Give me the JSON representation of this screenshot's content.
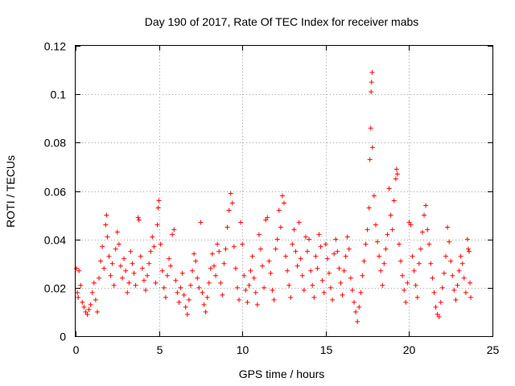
{
  "chart_data": {
    "type": "scatter",
    "title": "Day 190 of 2017, Rate Of TEC Index for receiver mabs",
    "xlabel": "GPS time / hours",
    "ylabel": "ROTI / TECUs",
    "xlim": [
      0,
      25
    ],
    "ylim": [
      0,
      0.12
    ],
    "x_ticks": [
      0,
      5,
      10,
      15,
      20,
      25
    ],
    "x_tick_labels": [
      "0",
      "5",
      "10",
      "15",
      "20",
      "25"
    ],
    "y_ticks": [
      0,
      0.02,
      0.04,
      0.06,
      0.08,
      0.1,
      0.12
    ],
    "y_tick_labels": [
      "0",
      "0.02",
      "0.04",
      "0.06",
      "0.08",
      "0.1",
      "0.12"
    ],
    "grid": true,
    "marker": "+",
    "series_color": "#ff0000",
    "series": [
      {
        "points": [
          [
            0.05,
            0.028
          ],
          [
            0.1,
            0.018
          ],
          [
            0.15,
            0.016
          ],
          [
            0.2,
            0.027
          ],
          [
            0.3,
            0.021
          ],
          [
            0.4,
            0.014
          ],
          [
            0.5,
            0.012
          ],
          [
            0.6,
            0.01
          ],
          [
            0.7,
            0.009
          ],
          [
            0.8,
            0.011
          ],
          [
            0.9,
            0.013
          ],
          [
            1.0,
            0.018
          ],
          [
            1.1,
            0.022
          ],
          [
            1.2,
            0.015
          ],
          [
            1.3,
            0.01
          ],
          [
            1.4,
            0.024
          ],
          [
            1.5,
            0.031
          ],
          [
            1.6,
            0.037
          ],
          [
            1.7,
            0.028
          ],
          [
            1.8,
            0.046
          ],
          [
            1.85,
            0.05
          ],
          [
            1.9,
            0.041
          ],
          [
            2.0,
            0.033
          ],
          [
            2.1,
            0.025
          ],
          [
            2.2,
            0.03
          ],
          [
            2.3,
            0.021
          ],
          [
            2.4,
            0.036
          ],
          [
            2.5,
            0.043
          ],
          [
            2.6,
            0.038
          ],
          [
            2.7,
            0.029
          ],
          [
            2.8,
            0.024
          ],
          [
            2.9,
            0.032
          ],
          [
            3.0,
            0.027
          ],
          [
            3.1,
            0.018
          ],
          [
            3.2,
            0.022
          ],
          [
            3.3,
            0.035
          ],
          [
            3.4,
            0.03
          ],
          [
            3.5,
            0.026
          ],
          [
            3.6,
            0.021
          ],
          [
            3.75,
            0.049
          ],
          [
            3.8,
            0.048
          ],
          [
            3.9,
            0.033
          ],
          [
            4.0,
            0.028
          ],
          [
            4.1,
            0.023
          ],
          [
            4.2,
            0.019
          ],
          [
            4.3,
            0.025
          ],
          [
            4.4,
            0.03
          ],
          [
            4.5,
            0.035
          ],
          [
            4.6,
            0.041
          ],
          [
            4.7,
            0.037
          ],
          [
            4.8,
            0.022
          ],
          [
            4.9,
            0.046
          ],
          [
            4.95,
            0.053
          ],
          [
            5.0,
            0.056
          ],
          [
            5.1,
            0.038
          ],
          [
            5.2,
            0.027
          ],
          [
            5.3,
            0.02
          ],
          [
            5.4,
            0.016
          ],
          [
            5.5,
            0.025
          ],
          [
            5.6,
            0.032
          ],
          [
            5.7,
            0.029
          ],
          [
            5.8,
            0.042
          ],
          [
            5.9,
            0.044
          ],
          [
            6.0,
            0.023
          ],
          [
            6.1,
            0.018
          ],
          [
            6.2,
            0.014
          ],
          [
            6.3,
            0.02
          ],
          [
            6.4,
            0.026
          ],
          [
            6.5,
            0.017
          ],
          [
            6.6,
            0.012
          ],
          [
            6.7,
            0.009
          ],
          [
            6.8,
            0.015
          ],
          [
            6.9,
            0.021
          ],
          [
            7.0,
            0.027
          ],
          [
            7.1,
            0.034
          ],
          [
            7.2,
            0.031
          ],
          [
            7.3,
            0.024
          ],
          [
            7.4,
            0.02
          ],
          [
            7.5,
            0.047
          ],
          [
            7.6,
            0.018
          ],
          [
            7.7,
            0.013
          ],
          [
            7.8,
            0.01
          ],
          [
            7.9,
            0.016
          ],
          [
            8.0,
            0.022
          ],
          [
            8.1,
            0.028
          ],
          [
            8.2,
            0.034
          ],
          [
            8.3,
            0.029
          ],
          [
            8.4,
            0.025
          ],
          [
            8.5,
            0.038
          ],
          [
            8.6,
            0.035
          ],
          [
            8.7,
            0.022
          ],
          [
            8.8,
            0.017
          ],
          [
            8.9,
            0.03
          ],
          [
            9.0,
            0.036
          ],
          [
            9.1,
            0.045
          ],
          [
            9.2,
            0.052
          ],
          [
            9.3,
            0.059
          ],
          [
            9.4,
            0.055
          ],
          [
            9.5,
            0.037
          ],
          [
            9.6,
            0.028
          ],
          [
            9.7,
            0.02
          ],
          [
            9.8,
            0.015
          ],
          [
            9.9,
            0.047
          ],
          [
            10.0,
            0.038
          ],
          [
            10.1,
            0.025
          ],
          [
            10.2,
            0.019
          ],
          [
            10.3,
            0.014
          ],
          [
            10.4,
            0.021
          ],
          [
            10.5,
            0.027
          ],
          [
            10.6,
            0.033
          ],
          [
            10.7,
            0.024
          ],
          [
            10.8,
            0.018
          ],
          [
            10.9,
            0.013
          ],
          [
            11.0,
            0.042
          ],
          [
            11.1,
            0.036
          ],
          [
            11.2,
            0.029
          ],
          [
            11.3,
            0.02
          ],
          [
            11.4,
            0.048
          ],
          [
            11.5,
            0.049
          ],
          [
            11.6,
            0.031
          ],
          [
            11.7,
            0.026
          ],
          [
            11.8,
            0.019
          ],
          [
            11.9,
            0.015
          ],
          [
            12.0,
            0.036
          ],
          [
            12.1,
            0.04
          ],
          [
            12.2,
            0.052
          ],
          [
            12.3,
            0.045
          ],
          [
            12.4,
            0.058
          ],
          [
            12.5,
            0.055
          ],
          [
            12.6,
            0.033
          ],
          [
            12.7,
            0.027
          ],
          [
            12.8,
            0.021
          ],
          [
            12.9,
            0.016
          ],
          [
            13.0,
            0.038
          ],
          [
            13.1,
            0.044
          ],
          [
            13.2,
            0.035
          ],
          [
            13.3,
            0.029
          ],
          [
            13.4,
            0.047
          ],
          [
            13.5,
            0.032
          ],
          [
            13.6,
            0.025
          ],
          [
            13.7,
            0.019
          ],
          [
            13.8,
            0.041
          ],
          [
            13.9,
            0.035
          ],
          [
            14.0,
            0.04
          ],
          [
            14.1,
            0.027
          ],
          [
            14.2,
            0.021
          ],
          [
            14.3,
            0.016
          ],
          [
            14.4,
            0.033
          ],
          [
            14.5,
            0.028
          ],
          [
            14.6,
            0.042
          ],
          [
            14.7,
            0.037
          ],
          [
            14.8,
            0.023
          ],
          [
            14.9,
            0.018
          ],
          [
            15.0,
            0.038
          ],
          [
            15.1,
            0.032
          ],
          [
            15.2,
            0.026
          ],
          [
            15.3,
            0.02
          ],
          [
            15.4,
            0.015
          ],
          [
            15.5,
            0.034
          ],
          [
            15.6,
            0.04
          ],
          [
            15.7,
            0.035
          ],
          [
            15.8,
            0.028
          ],
          [
            15.9,
            0.022
          ],
          [
            16.0,
            0.017
          ],
          [
            16.1,
            0.027
          ],
          [
            16.2,
            0.033
          ],
          [
            16.3,
            0.041
          ],
          [
            16.4,
            0.036
          ],
          [
            16.5,
            0.024
          ],
          [
            16.6,
            0.019
          ],
          [
            16.7,
            0.014
          ],
          [
            16.8,
            0.01
          ],
          [
            16.9,
            0.006
          ],
          [
            17.0,
            0.012
          ],
          [
            17.1,
            0.018
          ],
          [
            17.2,
            0.025
          ],
          [
            17.3,
            0.031
          ],
          [
            17.4,
            0.038
          ],
          [
            17.5,
            0.044
          ],
          [
            17.6,
            0.053
          ],
          [
            17.65,
            0.073
          ],
          [
            17.7,
            0.086
          ],
          [
            17.72,
            0.101
          ],
          [
            17.75,
            0.105
          ],
          [
            17.78,
            0.109
          ],
          [
            17.8,
            0.078
          ],
          [
            17.9,
            0.058
          ],
          [
            18.0,
            0.046
          ],
          [
            18.1,
            0.039
          ],
          [
            18.2,
            0.033
          ],
          [
            18.3,
            0.027
          ],
          [
            18.4,
            0.021
          ],
          [
            18.5,
            0.03
          ],
          [
            18.6,
            0.036
          ],
          [
            18.7,
            0.042
          ],
          [
            18.8,
            0.061
          ],
          [
            18.9,
            0.05
          ],
          [
            19.0,
            0.044
          ],
          [
            19.1,
            0.056
          ],
          [
            19.2,
            0.065
          ],
          [
            19.25,
            0.069
          ],
          [
            19.3,
            0.067
          ],
          [
            19.4,
            0.038
          ],
          [
            19.5,
            0.031
          ],
          [
            19.6,
            0.025
          ],
          [
            19.7,
            0.019
          ],
          [
            19.8,
            0.014
          ],
          [
            19.9,
            0.022
          ],
          [
            20.0,
            0.047
          ],
          [
            20.1,
            0.046
          ],
          [
            20.2,
            0.033
          ],
          [
            20.3,
            0.027
          ],
          [
            20.4,
            0.021
          ],
          [
            20.5,
            0.016
          ],
          [
            20.6,
            0.03
          ],
          [
            20.7,
            0.036
          ],
          [
            20.8,
            0.043
          ],
          [
            20.9,
            0.05
          ],
          [
            21.0,
            0.054
          ],
          [
            21.1,
            0.044
          ],
          [
            21.2,
            0.038
          ],
          [
            21.3,
            0.03
          ],
          [
            21.4,
            0.024
          ],
          [
            21.5,
            0.018
          ],
          [
            21.6,
            0.012
          ],
          [
            21.7,
            0.009
          ],
          [
            21.8,
            0.008
          ],
          [
            21.9,
            0.014
          ],
          [
            22.0,
            0.02
          ],
          [
            22.1,
            0.026
          ],
          [
            22.2,
            0.033
          ],
          [
            22.3,
            0.045
          ],
          [
            22.4,
            0.039
          ],
          [
            22.5,
            0.031
          ],
          [
            22.6,
            0.025
          ],
          [
            22.7,
            0.019
          ],
          [
            22.8,
            0.015
          ],
          [
            22.9,
            0.021
          ],
          [
            23.0,
            0.027
          ],
          [
            23.1,
            0.033
          ],
          [
            23.2,
            0.03
          ],
          [
            23.3,
            0.024
          ],
          [
            23.4,
            0.018
          ],
          [
            23.5,
            0.04
          ],
          [
            23.55,
            0.036
          ],
          [
            23.6,
            0.035
          ],
          [
            23.65,
            0.022
          ],
          [
            23.7,
            0.016
          ]
        ]
      }
    ]
  }
}
